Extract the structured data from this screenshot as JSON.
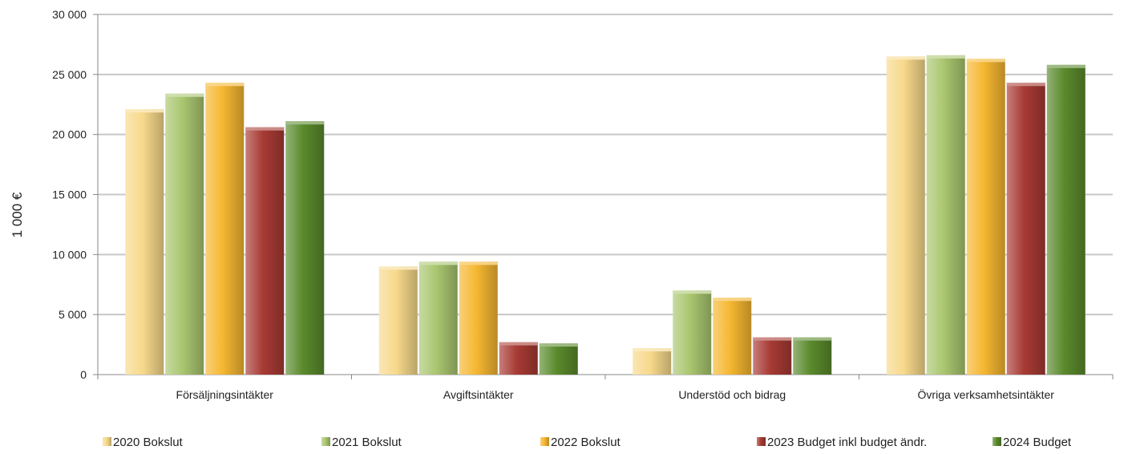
{
  "chart_data": {
    "type": "bar",
    "title": "",
    "xlabel": "",
    "ylabel": "1 000 €",
    "ylim": [
      0,
      30000
    ],
    "yticks": [
      0,
      5000,
      10000,
      15000,
      20000,
      25000,
      30000
    ],
    "ytick_labels": [
      "0",
      "5 000",
      "10 000",
      "15 000",
      "20 000",
      "25 000",
      "30 000"
    ],
    "grid": true,
    "legend_position": "bottom",
    "categories": [
      "Försäljningsintäkter",
      "Avgiftsintäkter",
      "Understöd och bidrag",
      "Övriga verksamhetsintäkter"
    ],
    "series": [
      {
        "name": "2020 Bokslut",
        "color": "#f7d98b",
        "values": [
          22100,
          9000,
          2200,
          26500
        ]
      },
      {
        "name": "2021 Bokslut",
        "color": "#a9c66f",
        "values": [
          23400,
          9400,
          7000,
          26600
        ]
      },
      {
        "name": "2022 Bokslut",
        "color": "#f5b731",
        "values": [
          24300,
          9400,
          6400,
          26300
        ]
      },
      {
        "name": "2023 Budget inkl budget ändr.",
        "color": "#a83a34",
        "values": [
          20600,
          2700,
          3100,
          24300
        ]
      },
      {
        "name": "2024 Budget",
        "color": "#5a8a2c",
        "values": [
          21100,
          2600,
          3100,
          25800
        ]
      }
    ]
  }
}
